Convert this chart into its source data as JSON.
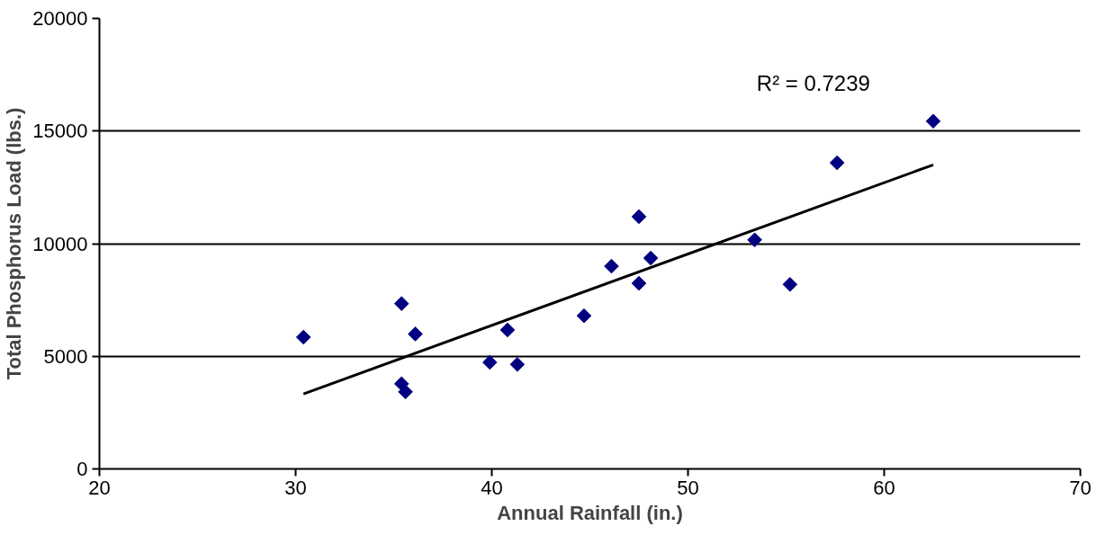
{
  "chart_data": {
    "type": "scatter",
    "xlabel": "Annual Rainfall (in.)",
    "ylabel": "Total Phosphorus Load (lbs.)",
    "xlim": [
      20,
      70
    ],
    "xticks": [
      20,
      30,
      40,
      50,
      60,
      70
    ],
    "ylim": [
      0,
      20000
    ],
    "yticks": [
      0,
      5000,
      10000,
      15000,
      20000
    ],
    "grid": "y",
    "annotations": [
      "R² = 0.7239"
    ],
    "series": [
      {
        "color": "#000080",
        "marker": "diamond",
        "x": [
          30.4,
          35.4,
          36.1,
          35.4,
          35.6,
          39.9,
          40.8,
          41.3,
          44.7,
          46.1,
          47.5,
          47.5,
          48.1,
          53.4,
          55.2,
          57.6,
          62.5
        ],
        "values": [
          5850,
          7340,
          5990,
          3780,
          3420,
          4730,
          6170,
          4640,
          6800,
          9000,
          11200,
          8240,
          9360,
          10170,
          8190,
          13590,
          15440
        ]
      },
      {
        "type": "line",
        "color": "#000000",
        "line_style": "solid",
        "x": [
          30.4,
          62.5
        ],
        "values": [
          3330,
          13500
        ]
      }
    ]
  }
}
